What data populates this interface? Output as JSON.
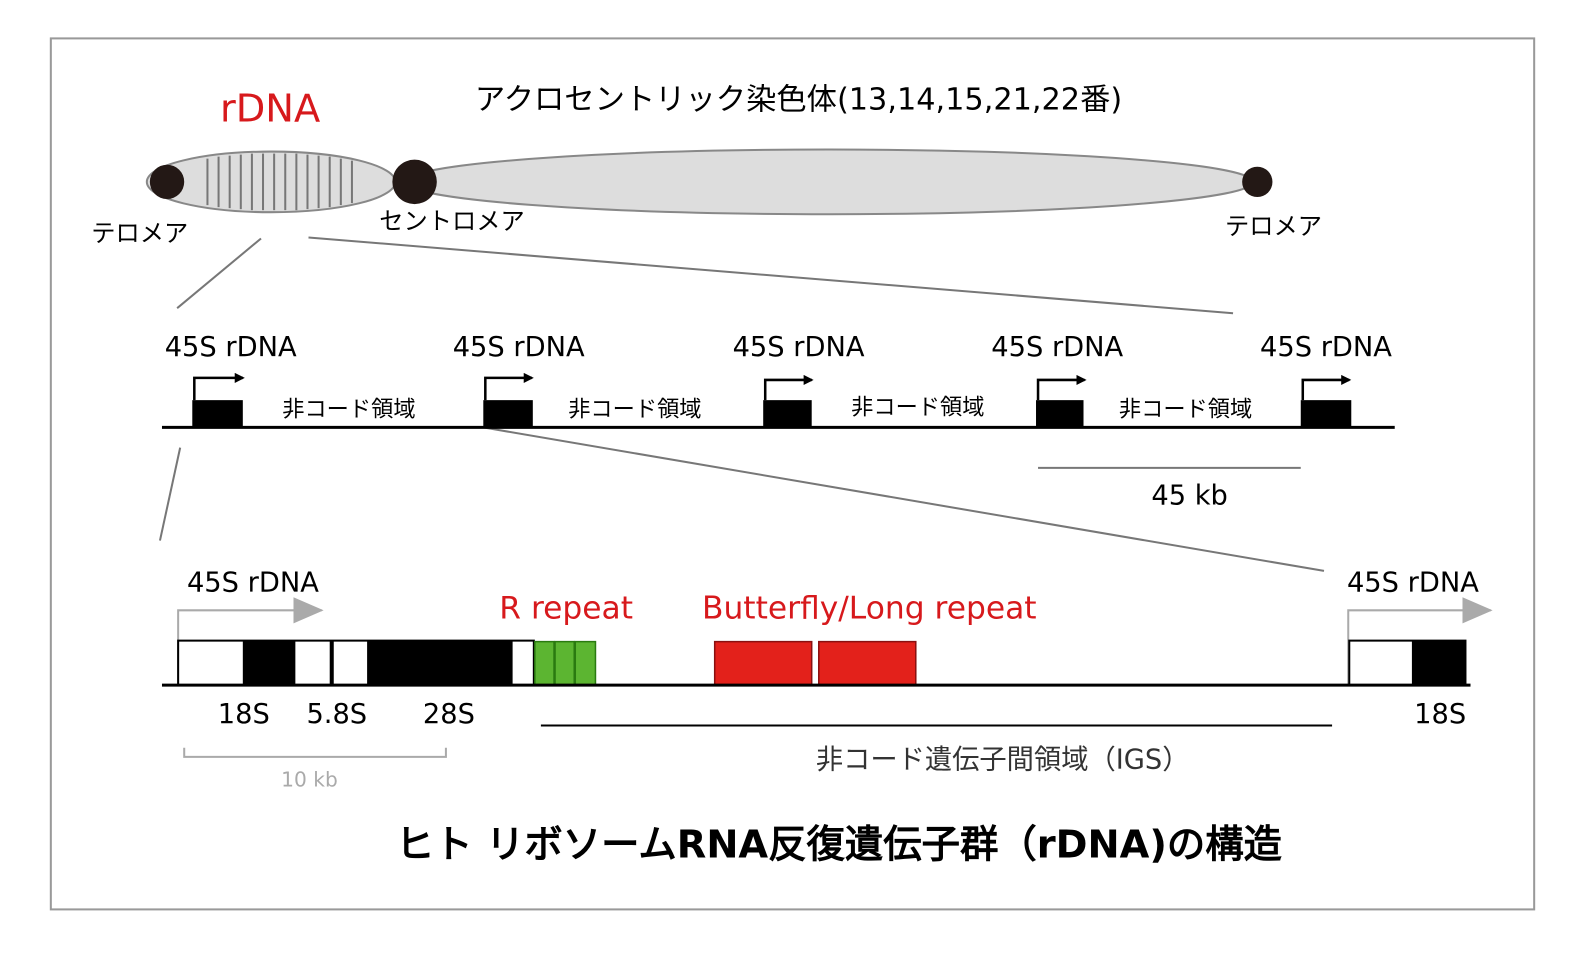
{
  "chromosome": {
    "region_label": "rDNA",
    "title": "アクロセントリック染色体(13,14,15,21,22番)",
    "telomere_left": "テロメア",
    "centromere": "セントロメア",
    "telomere_right": "テロメア"
  },
  "repeat_array": {
    "units": [
      "45S rDNA",
      "45S rDNA",
      "45S rDNA",
      "45S rDNA",
      "45S rDNA"
    ],
    "spacers": [
      "非コード領域",
      "非コード領域",
      "非コード領域",
      "非コード領域"
    ],
    "scale": "45 kb"
  },
  "unit_detail": {
    "gene_left": "45S rDNA",
    "r_repeat": "R repeat",
    "butterfly": "Butterfly/Long repeat",
    "gene_right": "45S rDNA",
    "parts": [
      "18S",
      "5.8S",
      "28S"
    ],
    "part_right": "18S",
    "igs": "非コード遺伝子間領域（IGS）",
    "scale": "10 kb"
  },
  "caption": "ヒト リボソームRNA反復遺伝子群（rDNA)の構造"
}
